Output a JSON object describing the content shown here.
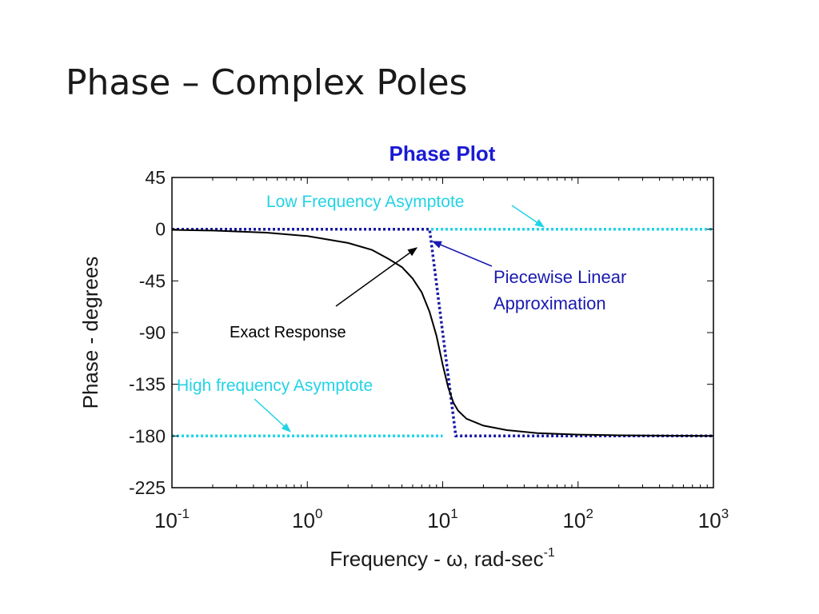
{
  "slide": {
    "title": "Phase – Complex Poles"
  },
  "chart_data": {
    "type": "line",
    "title": "Phase Plot",
    "xlabel": "Frequency - ω, rad-sec",
    "xlabel_superscript": "-1",
    "ylabel": "Phase - degrees",
    "xscale": "log",
    "xlim": [
      0.1,
      1000
    ],
    "ylim": [
      -225,
      45
    ],
    "x_tick_values": [
      0.1,
      1,
      10,
      100,
      1000
    ],
    "x_ticks": [
      {
        "base": "10",
        "exp": "-1"
      },
      {
        "base": "10",
        "exp": "0"
      },
      {
        "base": "10",
        "exp": "1"
      },
      {
        "base": "10",
        "exp": "2"
      },
      {
        "base": "10",
        "exp": "3"
      }
    ],
    "y_ticks": [
      45,
      0,
      -45,
      -90,
      -135,
      -180,
      -225
    ],
    "grid": false,
    "colors": {
      "exact": "#000000",
      "piecewise": "#1a1aa8",
      "asymptote": "#22d3e6",
      "title": "#1a1ad4",
      "annotation_blue": "#1a1ab0"
    },
    "series": [
      {
        "key": "exact",
        "x": [
          0.1,
          0.2,
          0.5,
          1,
          2,
          3,
          4,
          5,
          6,
          7,
          8,
          9,
          10,
          11,
          12,
          13,
          15,
          20,
          30,
          50,
          100,
          200,
          500,
          1000
        ],
        "y": [
          -0.6,
          -1.2,
          -3,
          -6,
          -12,
          -18,
          -26,
          -33,
          -43,
          -55,
          -72,
          -93,
          -118,
          -138,
          -151,
          -158,
          -165,
          -171,
          -175,
          -177.5,
          -178.8,
          -179.4,
          -179.8,
          -179.9
        ]
      },
      {
        "key": "piecewise",
        "x": [
          0.1,
          8,
          12.5,
          1000
        ],
        "y": [
          0,
          0,
          -180,
          -180
        ]
      },
      {
        "key": "low_asymptote",
        "x": [
          0.1,
          1000
        ],
        "y": [
          0,
          0
        ]
      },
      {
        "key": "high_asymptote",
        "x": [
          0.1,
          10
        ],
        "y": [
          -180,
          -180
        ]
      }
    ],
    "annotations": {
      "low_freq": "Low Frequency Asymptote",
      "piecewise_line1": "Piecewise Linear",
      "piecewise_line2": "Approximation",
      "exact": "Exact Response",
      "high_freq": "High frequency Asymptote"
    }
  }
}
